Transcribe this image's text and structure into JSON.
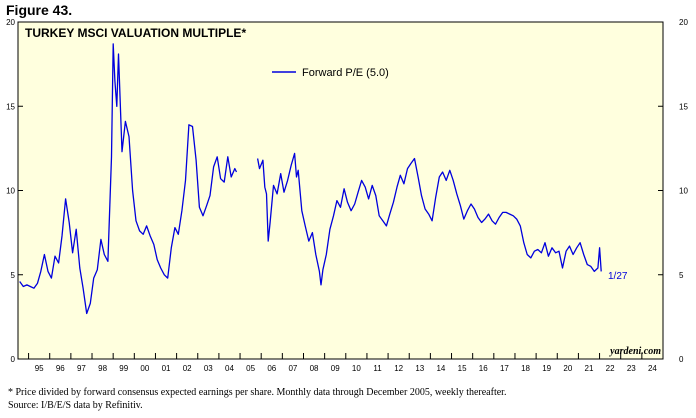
{
  "figure_label": "Figure 43.",
  "footnote_1": "* Price divided by forward consensus expected earnings per share. Monthly data through December 2005, weekly thereafter.",
  "footnote_2": "Source: I/B/E/S data by Refinitiv.",
  "chart_data": {
    "type": "line",
    "title": "TURKEY MSCI VALUATION MULTIPLE*",
    "watermark": "yardeni.com",
    "end_label": "1/27",
    "legend_position": "top-center",
    "grid": false,
    "background_color": "#ffffde",
    "ylim": [
      0,
      20
    ],
    "y_ticks": [
      "0",
      "5",
      "10",
      "15",
      "20"
    ],
    "xlim": [
      1994.5,
      2025.0
    ],
    "x_tick_labels": [
      "95",
      "96",
      "97",
      "98",
      "99",
      "00",
      "01",
      "02",
      "03",
      "04",
      "05",
      "06",
      "07",
      "08",
      "09",
      "10",
      "11",
      "12",
      "13",
      "14",
      "15",
      "16",
      "17",
      "18",
      "19",
      "20",
      "21",
      "22",
      "23",
      "24"
    ],
    "series": [
      {
        "name": "Forward P/E (5.0)",
        "color": "#0000dd",
        "segments": [
          [
            [
              1994.58,
              4.6
            ],
            [
              1994.75,
              4.3
            ],
            [
              1994.92,
              4.4
            ],
            [
              1995.08,
              4.3
            ],
            [
              1995.25,
              4.2
            ],
            [
              1995.42,
              4.5
            ],
            [
              1995.58,
              5.2
            ],
            [
              1995.75,
              6.2
            ],
            [
              1995.92,
              5.2
            ],
            [
              1996.08,
              4.8
            ],
            [
              1996.25,
              6.1
            ],
            [
              1996.42,
              5.7
            ],
            [
              1996.58,
              7.3
            ],
            [
              1996.75,
              9.5
            ],
            [
              1996.92,
              8.1
            ],
            [
              1997.08,
              6.3
            ],
            [
              1997.25,
              7.7
            ],
            [
              1997.42,
              5.4
            ],
            [
              1997.58,
              4.2
            ],
            [
              1997.75,
              2.7
            ],
            [
              1997.92,
              3.3
            ],
            [
              1998.08,
              4.8
            ],
            [
              1998.25,
              5.3
            ],
            [
              1998.42,
              7.1
            ],
            [
              1998.58,
              6.2
            ],
            [
              1998.75,
              5.8
            ],
            [
              1998.92,
              12.0
            ],
            [
              1999.0,
              18.7
            ],
            [
              1999.08,
              16.5
            ],
            [
              1999.17,
              15.0
            ],
            [
              1999.25,
              18.1
            ],
            [
              1999.42,
              12.3
            ],
            [
              1999.58,
              14.1
            ],
            [
              1999.75,
              13.2
            ],
            [
              1999.92,
              10.0
            ],
            [
              2000.08,
              8.2
            ],
            [
              2000.25,
              7.6
            ],
            [
              2000.42,
              7.4
            ],
            [
              2000.58,
              7.9
            ],
            [
              2000.75,
              7.3
            ],
            [
              2000.92,
              6.8
            ],
            [
              2001.08,
              5.9
            ],
            [
              2001.25,
              5.4
            ],
            [
              2001.42,
              5.0
            ],
            [
              2001.58,
              4.8
            ],
            [
              2001.75,
              6.6
            ],
            [
              2001.92,
              7.8
            ],
            [
              2002.08,
              7.4
            ],
            [
              2002.25,
              8.8
            ],
            [
              2002.42,
              10.6
            ],
            [
              2002.58,
              13.9
            ],
            [
              2002.75,
              13.8
            ],
            [
              2002.92,
              11.8
            ],
            [
              2003.08,
              9.0
            ],
            [
              2003.25,
              8.5
            ],
            [
              2003.42,
              9.1
            ],
            [
              2003.58,
              9.7
            ],
            [
              2003.75,
              11.4
            ],
            [
              2003.92,
              12.0
            ],
            [
              2004.08,
              10.7
            ],
            [
              2004.25,
              10.5
            ],
            [
              2004.42,
              12.0
            ],
            [
              2004.58,
              10.8
            ],
            [
              2004.75,
              11.3
            ],
            [
              2004.83,
              11.1
            ]
          ],
          [
            [
              2005.83,
              11.9
            ],
            [
              2005.92,
              11.3
            ],
            [
              2006.08,
              11.8
            ],
            [
              2006.17,
              10.2
            ],
            [
              2006.25,
              9.8
            ],
            [
              2006.33,
              7.0
            ],
            [
              2006.42,
              8.1
            ],
            [
              2006.58,
              10.3
            ],
            [
              2006.75,
              9.8
            ],
            [
              2006.92,
              11.0
            ],
            [
              2007.08,
              9.9
            ],
            [
              2007.25,
              10.6
            ],
            [
              2007.42,
              11.5
            ],
            [
              2007.58,
              12.2
            ],
            [
              2007.67,
              10.8
            ],
            [
              2007.75,
              11.2
            ],
            [
              2007.92,
              8.8
            ],
            [
              2008.08,
              7.9
            ],
            [
              2008.25,
              7.0
            ],
            [
              2008.42,
              7.5
            ],
            [
              2008.58,
              6.2
            ],
            [
              2008.75,
              5.2
            ],
            [
              2008.83,
              4.4
            ],
            [
              2008.92,
              5.3
            ],
            [
              2009.08,
              6.2
            ],
            [
              2009.25,
              7.7
            ],
            [
              2009.42,
              8.5
            ],
            [
              2009.58,
              9.4
            ],
            [
              2009.75,
              9.0
            ],
            [
              2009.92,
              10.1
            ],
            [
              2010.08,
              9.3
            ],
            [
              2010.25,
              8.8
            ],
            [
              2010.42,
              9.2
            ],
            [
              2010.58,
              9.9
            ],
            [
              2010.75,
              10.6
            ],
            [
              2010.92,
              10.2
            ],
            [
              2011.08,
              9.5
            ],
            [
              2011.25,
              10.3
            ],
            [
              2011.42,
              9.7
            ],
            [
              2011.58,
              8.5
            ],
            [
              2011.75,
              8.2
            ],
            [
              2011.92,
              7.9
            ],
            [
              2012.08,
              8.6
            ],
            [
              2012.25,
              9.3
            ],
            [
              2012.42,
              10.2
            ],
            [
              2012.58,
              10.9
            ],
            [
              2012.75,
              10.4
            ],
            [
              2012.92,
              11.3
            ],
            [
              2013.08,
              11.6
            ],
            [
              2013.25,
              11.9
            ],
            [
              2013.42,
              10.8
            ],
            [
              2013.58,
              9.7
            ],
            [
              2013.75,
              8.9
            ],
            [
              2013.92,
              8.6
            ],
            [
              2014.08,
              8.2
            ],
            [
              2014.25,
              9.6
            ],
            [
              2014.42,
              10.8
            ],
            [
              2014.58,
              11.1
            ],
            [
              2014.75,
              10.6
            ],
            [
              2014.92,
              11.2
            ],
            [
              2015.08,
              10.6
            ],
            [
              2015.25,
              9.8
            ],
            [
              2015.42,
              9.1
            ],
            [
              2015.58,
              8.3
            ],
            [
              2015.75,
              8.8
            ],
            [
              2015.92,
              9.2
            ],
            [
              2016.08,
              8.9
            ],
            [
              2016.25,
              8.4
            ],
            [
              2016.42,
              8.1
            ],
            [
              2016.58,
              8.3
            ],
            [
              2016.75,
              8.6
            ],
            [
              2016.92,
              8.2
            ],
            [
              2017.08,
              8.0
            ],
            [
              2017.25,
              8.4
            ],
            [
              2017.42,
              8.7
            ],
            [
              2017.58,
              8.7
            ],
            [
              2017.75,
              8.6
            ],
            [
              2017.92,
              8.5
            ],
            [
              2018.08,
              8.3
            ],
            [
              2018.25,
              7.9
            ],
            [
              2018.42,
              6.9
            ],
            [
              2018.58,
              6.2
            ],
            [
              2018.75,
              6.0
            ],
            [
              2018.92,
              6.4
            ],
            [
              2019.08,
              6.5
            ],
            [
              2019.25,
              6.3
            ],
            [
              2019.42,
              6.9
            ],
            [
              2019.58,
              6.1
            ],
            [
              2019.75,
              6.6
            ],
            [
              2019.92,
              6.3
            ],
            [
              2020.08,
              6.4
            ],
            [
              2020.25,
              5.4
            ],
            [
              2020.42,
              6.4
            ],
            [
              2020.58,
              6.7
            ],
            [
              2020.75,
              6.2
            ],
            [
              2020.92,
              6.6
            ],
            [
              2021.08,
              6.9
            ],
            [
              2021.25,
              6.2
            ],
            [
              2021.42,
              5.6
            ],
            [
              2021.58,
              5.5
            ],
            [
              2021.75,
              5.2
            ],
            [
              2021.92,
              5.4
            ],
            [
              2022.0,
              6.6
            ],
            [
              2022.08,
              5.2
            ]
          ]
        ]
      }
    ]
  }
}
